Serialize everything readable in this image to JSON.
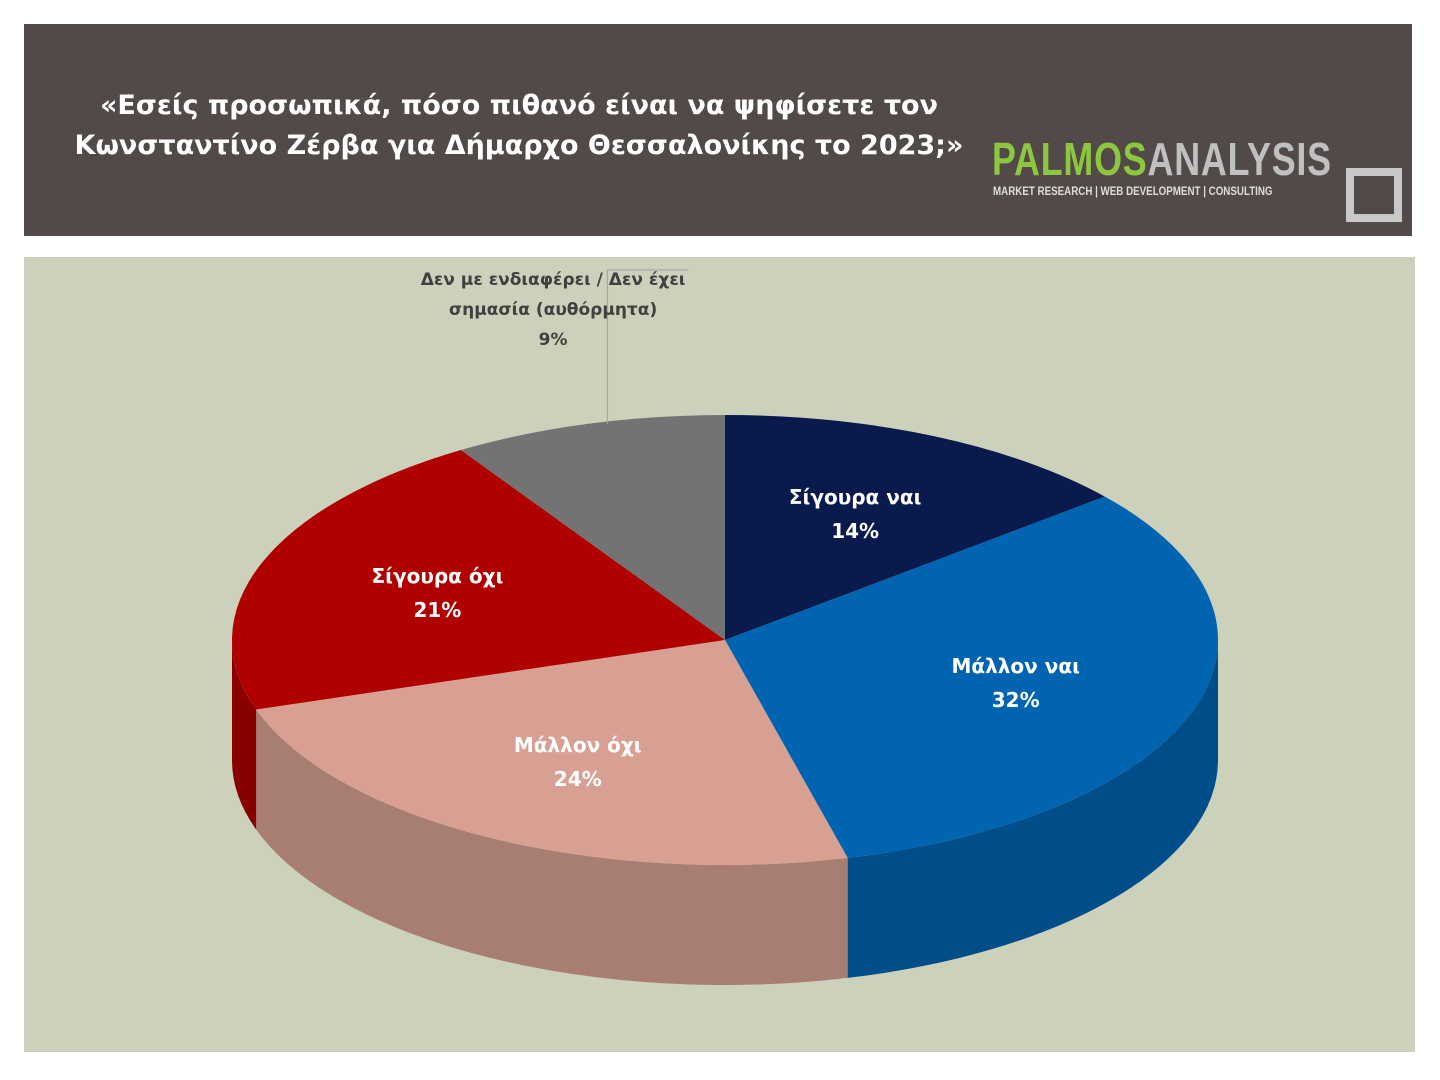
{
  "header": {
    "title": "«Εσείς προσωπικά, πόσο πιθανό είναι να ψηφίσετε τον Κωνσταντίνο Ζέρβα για Δήμαρχο Θεσσαλονίκης το 2023;»",
    "logo_primary": "PALMOS",
    "logo_secondary": "ANALYSIS",
    "logo_tagline": "MARKET RESEARCH | WEB DEVELOPMENT | CONSULTING"
  },
  "chart_data": {
    "type": "pie",
    "categories": [
      "Σίγουρα ναι",
      "Μάλλον ναι",
      "Μάλλον όχι",
      "Σίγουρα όχι",
      "Δεν με ενδιαφέρει / Δεν έχει σημασία (αυθόρμητα)"
    ],
    "values": [
      14,
      32,
      24,
      21,
      9
    ],
    "value_labels": [
      "14%",
      "32%",
      "24%",
      "21%",
      "9%"
    ],
    "colors": [
      "#0b1a4d",
      "#0064b0",
      "#d8a092",
      "#b00000",
      "#737373"
    ]
  }
}
